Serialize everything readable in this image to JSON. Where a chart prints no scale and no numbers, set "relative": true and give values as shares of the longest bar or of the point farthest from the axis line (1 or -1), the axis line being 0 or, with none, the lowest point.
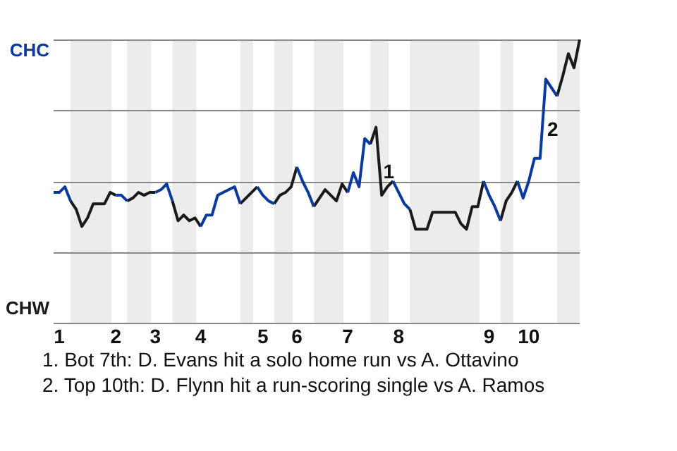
{
  "chart_data": {
    "type": "line",
    "relative": true,
    "categories": [
      null,
      "1",
      null,
      null,
      null,
      null,
      null,
      null,
      null,
      null,
      null,
      "2",
      null,
      null,
      null,
      null,
      null,
      null,
      "3",
      null,
      null,
      null,
      null,
      null,
      null,
      null,
      "4",
      null,
      null,
      null,
      null,
      null,
      null,
      null,
      null,
      null,
      null,
      "5",
      null,
      null,
      null,
      null,
      null,
      "6",
      null,
      null,
      null,
      null,
      null,
      null,
      null,
      null,
      "7",
      null,
      null,
      null,
      null,
      null,
      null,
      null,
      null,
      "8",
      null,
      null,
      null,
      null,
      null,
      null,
      null,
      null,
      null,
      null,
      null,
      null,
      null,
      null,
      null,
      "9",
      null,
      null,
      null,
      null,
      null,
      null,
      "10",
      null,
      null,
      null,
      null,
      null,
      null,
      null,
      null,
      null
    ],
    "series": [
      {
        "color": "#0a3a9e",
        "values": [
          0.46,
          0.46,
          0.48,
          0.43,
          null,
          null,
          null,
          null,
          null,
          null,
          null,
          0.45,
          0.45,
          0.43,
          null,
          null,
          null,
          null,
          0.46,
          0.47,
          0.49,
          0.43,
          null,
          null,
          null,
          null,
          0.34,
          0.38,
          0.38,
          0.45,
          0.46,
          0.47,
          0.48,
          0.42,
          null,
          null,
          0.48,
          0.45,
          0.43,
          0.42,
          null,
          null,
          null,
          0.55,
          0.5,
          0.46,
          0.41,
          null,
          null,
          null,
          null,
          null,
          0.46,
          0.53,
          0.48,
          0.65,
          0.63,
          null,
          null,
          null,
          0.5,
          0.46,
          0.42,
          0.4,
          null,
          null,
          null,
          null,
          null,
          null,
          null,
          null,
          null,
          null,
          null,
          null,
          0.5,
          0.45,
          0.41,
          0.36,
          null,
          null,
          0.5,
          0.44,
          0.5,
          0.58,
          0.58,
          0.86,
          0.83,
          0.8,
          null,
          null,
          null,
          null
        ]
      },
      {
        "color": "#1a1a1a",
        "values": [
          null,
          null,
          null,
          0.43,
          0.4,
          0.34,
          0.37,
          0.42,
          0.42,
          0.42,
          0.46,
          0.45,
          null,
          0.43,
          0.44,
          0.46,
          0.45,
          0.46,
          0.46,
          null,
          null,
          0.43,
          0.36,
          0.38,
          0.36,
          0.37,
          0.34,
          null,
          null,
          null,
          null,
          null,
          null,
          0.42,
          0.44,
          0.46,
          0.48,
          null,
          null,
          0.42,
          0.45,
          0.46,
          0.48,
          0.55,
          null,
          null,
          0.41,
          0.44,
          0.47,
          0.45,
          0.43,
          0.49,
          0.46,
          null,
          null,
          null,
          0.63,
          0.69,
          0.45,
          0.48,
          0.5,
          null,
          null,
          0.4,
          0.33,
          0.33,
          0.33,
          0.39,
          0.39,
          0.39,
          0.39,
          0.39,
          0.35,
          0.33,
          0.41,
          0.41,
          0.5,
          null,
          null,
          0.36,
          0.43,
          0.46,
          0.5,
          null,
          null,
          null,
          null,
          null,
          null,
          0.8,
          0.87,
          0.95,
          0.9,
          1.0
        ]
      }
    ],
    "grid": "y",
    "legend": false,
    "marker": "none",
    "line_style": "solid",
    "annotations": [
      "CHC",
      "CHW",
      "1",
      "2",
      "1. Bot 7th: D. Evans hit a solo home run vs A. Ottavino",
      "2. Top 10th: D. Flynn hit a run-scoring single vs A. Ramos"
    ]
  }
}
